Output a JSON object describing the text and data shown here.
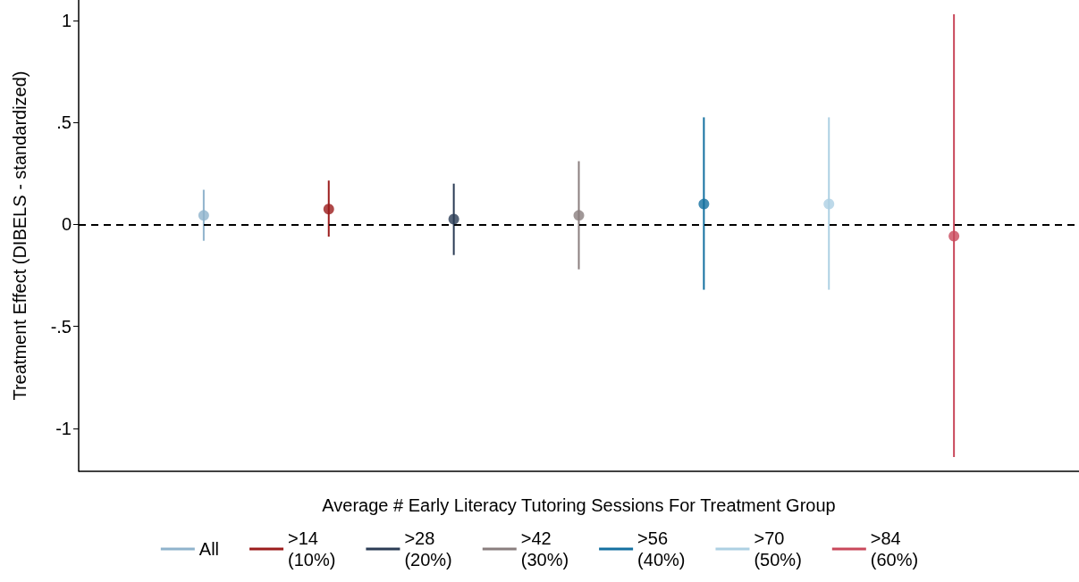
{
  "chart_data": {
    "type": "scatter",
    "xlabel": "Average # Early Literacy Tutoring Sessions For Treatment Group",
    "ylabel": "Treatment Effect (DIBELS - standardized)",
    "categories": [
      null,
      null,
      null,
      null,
      null,
      null,
      null
    ],
    "ylim": [
      -1.21,
      1.1
    ],
    "yticks": [
      -1,
      {
        "value": -0.5,
        "label": "-.5"
      },
      0,
      {
        "value": 0.5,
        "label": ".5"
      },
      1
    ],
    "tick_labels": "y",
    "grid": false,
    "legend": "bottom",
    "marker": "circle",
    "ref_lines": [
      {
        "axis": "y",
        "value": 0,
        "color": "#000000",
        "line_style": "dashed"
      }
    ],
    "series": [
      {
        "name": "All",
        "color": "#8fb3cc",
        "values": [
          0.044,
          null,
          null,
          null,
          null,
          null,
          null
        ],
        "errors": [
          [
            -0.08,
            0.17
          ],
          null,
          null,
          null,
          null,
          null,
          null
        ]
      },
      {
        "name": ">14\n(10%)",
        "color": "#9b1c1c",
        "values": [
          null,
          0.075,
          null,
          null,
          null,
          null,
          null
        ],
        "errors": [
          null,
          [
            -0.06,
            0.215
          ],
          null,
          null,
          null,
          null,
          null
        ]
      },
      {
        "name": ">28\n(20%)",
        "color": "#2b3c55",
        "values": [
          null,
          null,
          0.026,
          null,
          null,
          null,
          null
        ],
        "errors": [
          null,
          null,
          [
            -0.15,
            0.2
          ],
          null,
          null,
          null,
          null
        ]
      },
      {
        "name": ">42\n(30%)",
        "color": "#8a7e7e",
        "values": [
          null,
          null,
          null,
          0.044,
          null,
          null,
          null
        ],
        "errors": [
          null,
          null,
          null,
          [
            -0.22,
            0.31
          ],
          null,
          null,
          null
        ]
      },
      {
        "name": ">56\n(40%)",
        "color": "#1470a0",
        "values": [
          null,
          null,
          null,
          null,
          0.1,
          null,
          null
        ],
        "errors": [
          null,
          null,
          null,
          null,
          [
            -0.32,
            0.525
          ],
          null,
          null
        ]
      },
      {
        "name": ">70\n(50%)",
        "color": "#add0e3",
        "values": [
          null,
          null,
          null,
          null,
          null,
          0.1,
          null
        ],
        "errors": [
          null,
          null,
          null,
          null,
          null,
          [
            -0.32,
            0.525
          ],
          null
        ]
      },
      {
        "name": ">84\n(60%)",
        "color": "#c9485b",
        "values": [
          null,
          null,
          null,
          null,
          null,
          null,
          -0.057
        ],
        "errors": [
          null,
          null,
          null,
          null,
          null,
          null,
          [
            -1.14,
            1.03
          ]
        ]
      }
    ]
  }
}
